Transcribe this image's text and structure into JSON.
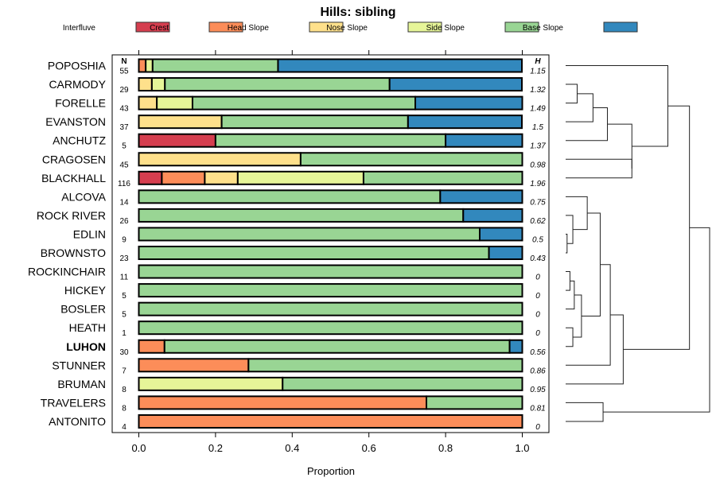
{
  "chart_data": {
    "type": "bar",
    "orientation": "horizontal-stacked",
    "title": "Hills: sibling",
    "xlabel": "Proportion",
    "ylabel": "",
    "xlim": [
      0,
      1
    ],
    "xticks": [
      "0.0",
      "0.2",
      "0.4",
      "0.6",
      "0.8",
      "1.0"
    ],
    "xtick_values": [
      0,
      0.2,
      0.4,
      0.6,
      0.8,
      1.0
    ],
    "legend_position": "top",
    "n_header": "N",
    "h_header": "H",
    "series": [
      {
        "name": "Interfluve",
        "color": "#D53E4F"
      },
      {
        "name": "Crest",
        "color": "#FC8D59"
      },
      {
        "name": "Head Slope",
        "color": "#FEE08B"
      },
      {
        "name": "Nose Slope",
        "color": "#E6F598"
      },
      {
        "name": "Side Slope",
        "color": "#99D594"
      },
      {
        "name": "Base Slope",
        "color": "#3288BD"
      }
    ],
    "rows": [
      {
        "label": "POPOSHIA",
        "bold": false,
        "n": "55",
        "h": "1.15",
        "values": [
          0,
          0.018,
          0,
          0.018,
          0.327,
          0.636
        ]
      },
      {
        "label": "CARMODY",
        "bold": false,
        "n": "29",
        "h": "1.32",
        "values": [
          0,
          0,
          0.034,
          0.034,
          0.586,
          0.345
        ]
      },
      {
        "label": "FORELLE",
        "bold": false,
        "n": "43",
        "h": "1.49",
        "values": [
          0,
          0,
          0.047,
          0.093,
          0.581,
          0.279
        ]
      },
      {
        "label": "EVANSTON",
        "bold": false,
        "n": "37",
        "h": "1.5",
        "values": [
          0,
          0,
          0.216,
          0,
          0.486,
          0.297
        ]
      },
      {
        "label": "ANCHUTZ",
        "bold": false,
        "n": "5",
        "h": "1.37",
        "values": [
          0.2,
          0,
          0,
          0,
          0.6,
          0.2
        ]
      },
      {
        "label": "CRAGOSEN",
        "bold": false,
        "n": "45",
        "h": "0.98",
        "values": [
          0,
          0,
          0.422,
          0,
          0.578,
          0
        ]
      },
      {
        "label": "BLACKHALL",
        "bold": false,
        "n": "116",
        "h": "1.96",
        "values": [
          0.06,
          0.112,
          0.086,
          0.328,
          0.414,
          0
        ]
      },
      {
        "label": "ALCOVA",
        "bold": false,
        "n": "14",
        "h": "0.75",
        "values": [
          0,
          0,
          0,
          0,
          0.786,
          0.214
        ]
      },
      {
        "label": "ROCK RIVER",
        "bold": false,
        "n": "26",
        "h": "0.62",
        "values": [
          0,
          0,
          0,
          0,
          0.846,
          0.154
        ]
      },
      {
        "label": "EDLIN",
        "bold": false,
        "n": "9",
        "h": "0.5",
        "values": [
          0,
          0,
          0,
          0,
          0.889,
          0.111
        ]
      },
      {
        "label": "BROWNSTO",
        "bold": false,
        "n": "23",
        "h": "0.43",
        "values": [
          0,
          0,
          0,
          0,
          0.913,
          0.087
        ]
      },
      {
        "label": "ROCKINCHAIR",
        "bold": false,
        "n": "11",
        "h": "0",
        "values": [
          0,
          0,
          0,
          0,
          1,
          0
        ]
      },
      {
        "label": "HICKEY",
        "bold": false,
        "n": "5",
        "h": "0",
        "values": [
          0,
          0,
          0,
          0,
          1,
          0
        ]
      },
      {
        "label": "BOSLER",
        "bold": false,
        "n": "5",
        "h": "0",
        "values": [
          0,
          0,
          0,
          0,
          1,
          0
        ]
      },
      {
        "label": "HEATH",
        "bold": false,
        "n": "1",
        "h": "0",
        "values": [
          0,
          0,
          0,
          0,
          1,
          0
        ]
      },
      {
        "label": "LUHON",
        "bold": true,
        "n": "30",
        "h": "0.56",
        "values": [
          0,
          0.067,
          0,
          0,
          0.9,
          0.033
        ]
      },
      {
        "label": "STUNNER",
        "bold": false,
        "n": "7",
        "h": "0.86",
        "values": [
          0,
          0.286,
          0,
          0,
          0.714,
          0
        ]
      },
      {
        "label": "BRUMAN",
        "bold": false,
        "n": "8",
        "h": "0.95",
        "values": [
          0,
          0,
          0,
          0.375,
          0.625,
          0
        ]
      },
      {
        "label": "TRAVELERS",
        "bold": false,
        "n": "8",
        "h": "0.81",
        "values": [
          0,
          0.75,
          0,
          0,
          0.25,
          0
        ]
      },
      {
        "label": "ANTONITO",
        "bold": false,
        "n": "4",
        "h": "0",
        "values": [
          0,
          1,
          0,
          0,
          0,
          0
        ]
      }
    ],
    "dendrogram": {
      "leaf_order": [
        "POPOSHIA",
        "CARMODY",
        "FORELLE",
        "EVANSTON",
        "ANCHUTZ",
        "CRAGOSEN",
        "BLACKHALL",
        "ALCOVA",
        "ROCK RIVER",
        "EDLIN",
        "BROWNSTO",
        "ROCKINCHAIR",
        "HICKEY",
        "BOSLER",
        "HEATH",
        "LUHON",
        "STUNNER",
        "BRUMAN",
        "TRAVELERS",
        "ANTONITO"
      ],
      "merges": [
        {
          "a": "L1",
          "b": "L2",
          "height": 0.08
        },
        {
          "a": "M0",
          "b": "L3",
          "height": 0.19
        },
        {
          "a": "M1",
          "b": "L4",
          "height": 0.29
        },
        {
          "a": "L5",
          "b": "L6",
          "height": 0.46
        },
        {
          "a": "M2",
          "b": "M3",
          "height": 0.46
        },
        {
          "a": "L0",
          "b": "M4",
          "height": 0.71
        },
        {
          "a": "L9",
          "b": "L10",
          "height": 0.01
        },
        {
          "a": "L8",
          "b": "M6",
          "height": 0.05
        },
        {
          "a": "L7",
          "b": "M7",
          "height": 0.15
        },
        {
          "a": "L11",
          "b": "L12",
          "height": 0.03
        },
        {
          "a": "M9",
          "b": "L13",
          "height": 0.06
        },
        {
          "a": "L14",
          "b": "L15",
          "height": 0.05
        },
        {
          "a": "M10",
          "b": "M11",
          "height": 0.11
        },
        {
          "a": "M8",
          "b": "M12",
          "height": 0.24
        },
        {
          "a": "M13",
          "b": "L16",
          "height": 0.31
        },
        {
          "a": "M14",
          "b": "L17",
          "height": 0.4
        },
        {
          "a": "M5",
          "b": "M15",
          "height": 0.86
        },
        {
          "a": "L18",
          "b": "L19",
          "height": 0.26
        },
        {
          "a": "M16",
          "b": "M17",
          "height": 1.0
        }
      ]
    }
  }
}
